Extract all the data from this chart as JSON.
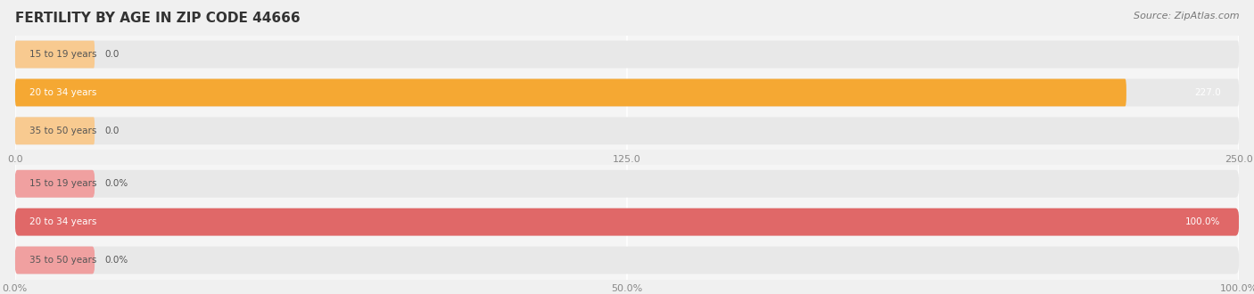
{
  "title": "FERTILITY BY AGE IN ZIP CODE 44666",
  "source_text": "Source: ZipAtlas.com",
  "fig_bg": "#f0f0f0",
  "row_bg": "#e8e8e8",
  "inter_row_bg": "#f5f5f5",
  "top_chart": {
    "categories": [
      "15 to 19 years",
      "20 to 34 years",
      "35 to 50 years"
    ],
    "values": [
      0.0,
      227.0,
      0.0
    ],
    "xlim": [
      0,
      250
    ],
    "xticks": [
      0.0,
      125.0,
      250.0
    ],
    "xtick_labels": [
      "0.0",
      "125.0",
      "250.0"
    ],
    "bar_color_main": "#f5a833",
    "bar_color_nub": "#f8ca90",
    "value_label_color": "#ffffff",
    "outside_label_color": "#555555"
  },
  "bottom_chart": {
    "categories": [
      "15 to 19 years",
      "20 to 34 years",
      "35 to 50 years"
    ],
    "values": [
      0.0,
      100.0,
      0.0
    ],
    "xlim": [
      0,
      100
    ],
    "xticks": [
      0.0,
      50.0,
      100.0
    ],
    "xtick_labels": [
      "0.0%",
      "50.0%",
      "100.0%"
    ],
    "bar_color_main": "#e06868",
    "bar_color_nub": "#f0a0a0",
    "value_label_color": "#ffffff",
    "outside_label_color": "#555555"
  },
  "cat_fontsize": 7.5,
  "title_fontsize": 11,
  "source_fontsize": 8,
  "tick_fontsize": 8,
  "value_fontsize": 7.5,
  "grid_color": "#ffffff",
  "tick_color": "#888888"
}
